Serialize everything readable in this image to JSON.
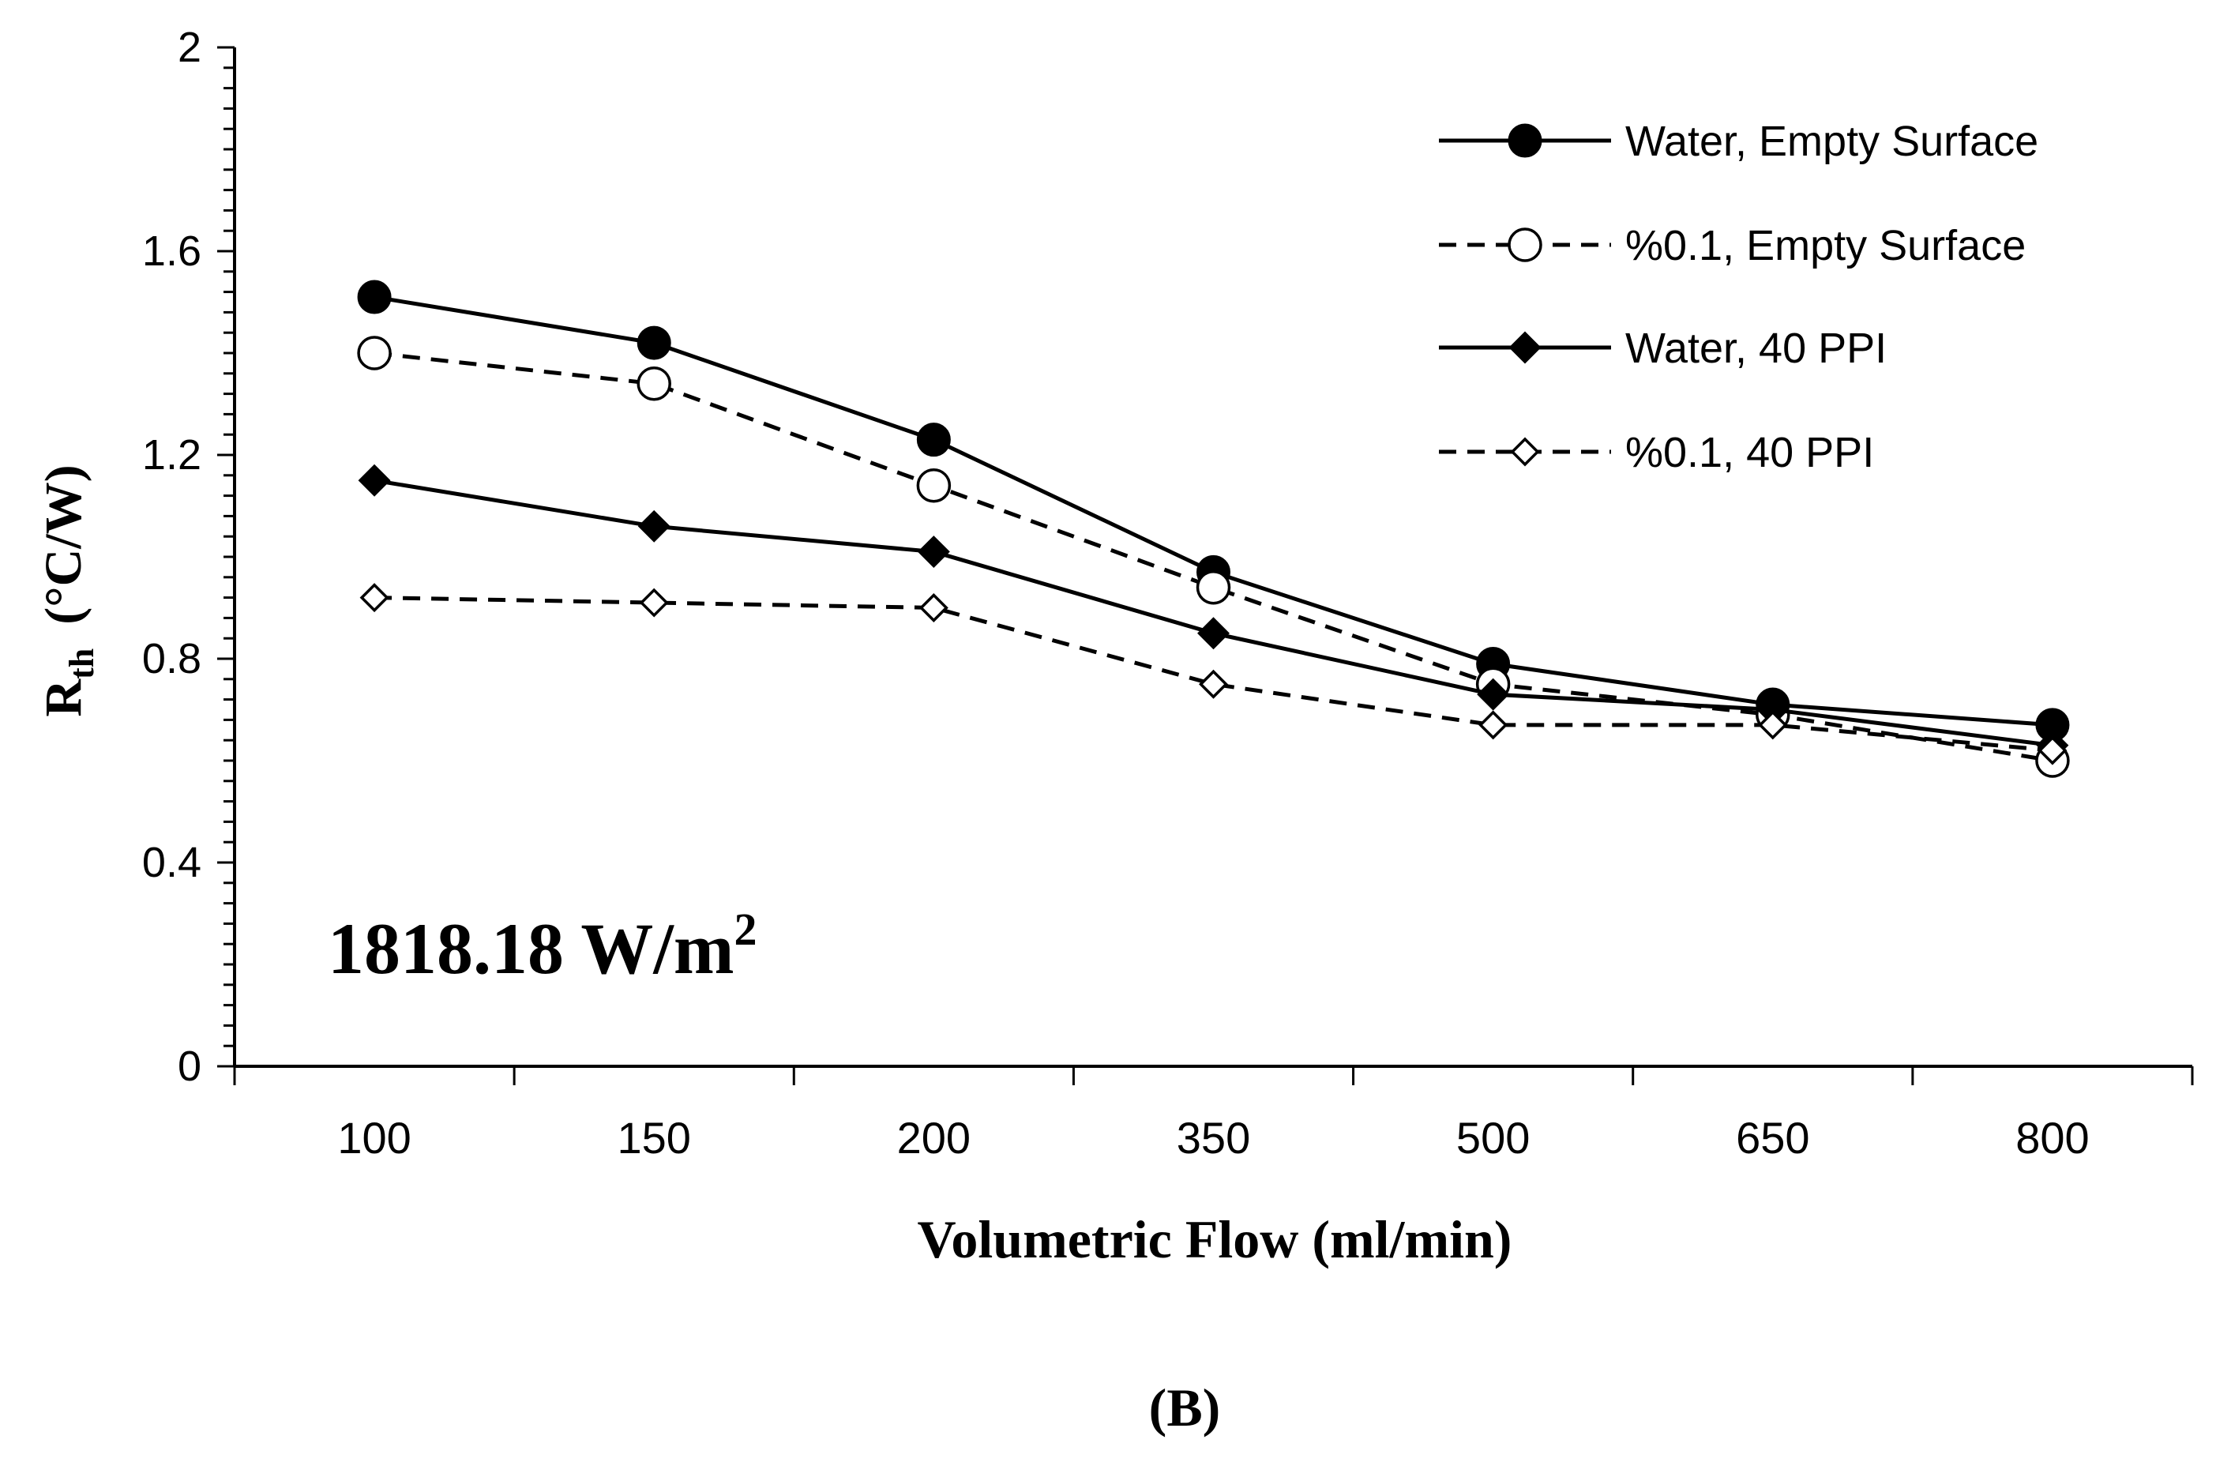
{
  "chart_data": {
    "type": "line",
    "title": "",
    "xlabel": "Volumetric Flow (ml/min)",
    "ylabel": {
      "main": "R",
      "sub": "th",
      "unit": "(°C/W)"
    },
    "annotation": {
      "main": "1818.18 W/m",
      "sup": "2"
    },
    "panel_label": "(B)",
    "categories": [
      "100",
      "150",
      "200",
      "350",
      "500",
      "650",
      "800"
    ],
    "ylim": [
      0,
      2
    ],
    "y_major_ticks": [
      0,
      0.4,
      0.8,
      1.2,
      1.6,
      2
    ],
    "y_tick_labels": [
      "0",
      "0.4",
      "0.8",
      "1.2",
      "1.6",
      "2"
    ],
    "grid": false,
    "legend_position": "top-right",
    "series": [
      {
        "name": "Water, Empty Surface",
        "values": [
          1.51,
          1.42,
          1.23,
          0.97,
          0.79,
          0.71,
          0.67
        ],
        "marker": "circle-filled",
        "line": "solid",
        "color": "#000000"
      },
      {
        "name": "%0.1, Empty Surface",
        "values": [
          1.4,
          1.34,
          1.14,
          0.94,
          0.75,
          0.69,
          0.6
        ],
        "marker": "circle-open",
        "line": "dashed",
        "color": "#000000"
      },
      {
        "name": "Water, 40 PPI",
        "values": [
          1.15,
          1.06,
          1.01,
          0.85,
          0.73,
          0.7,
          0.63
        ],
        "marker": "diamond-filled",
        "line": "solid",
        "color": "#000000"
      },
      {
        "name": "%0.1, 40 PPI",
        "values": [
          0.92,
          0.91,
          0.9,
          0.75,
          0.67,
          0.67,
          0.62
        ],
        "marker": "diamond-open",
        "line": "dashed",
        "color": "#000000"
      }
    ]
  }
}
